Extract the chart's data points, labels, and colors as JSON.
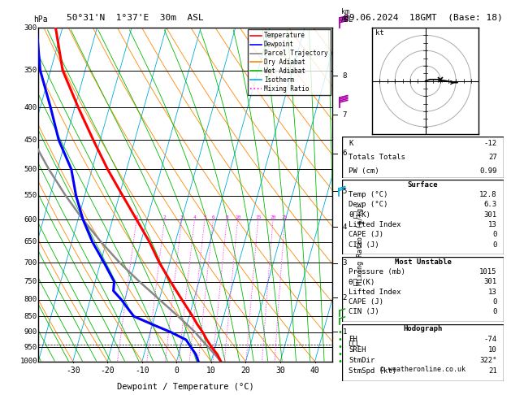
{
  "title_left": "50°31'N  1°37'E  30m  ASL",
  "title_right": "09.06.2024  18GMT  (Base: 18)",
  "xlabel": "Dewpoint / Temperature (°C)",
  "pressure_levels": [
    300,
    350,
    400,
    450,
    500,
    550,
    600,
    650,
    700,
    750,
    800,
    850,
    900,
    950,
    1000
  ],
  "temp_ticks": [
    -30,
    -20,
    -10,
    0,
    10,
    20,
    30,
    40
  ],
  "km_pressure_map": {
    "8": 357,
    "7": 411,
    "6": 472,
    "5": 541,
    "4": 616,
    "3": 701,
    "2": 795,
    "1": 899
  },
  "mixing_ratio_values": [
    1,
    2,
    3,
    4,
    5,
    6,
    8,
    10,
    15,
    20,
    25
  ],
  "legend_items": [
    "Temperature",
    "Dewpoint",
    "Parcel Trajectory",
    "Dry Adiabat",
    "Wet Adiabat",
    "Isotherm",
    "Mixing Ratio"
  ],
  "legend_colors": [
    "#ff0000",
    "#0000ff",
    "#888888",
    "#ff8800",
    "#00bb00",
    "#00aaff",
    "#ff00ff"
  ],
  "legend_styles": [
    "solid",
    "solid",
    "solid",
    "solid",
    "solid",
    "solid",
    "dotted"
  ],
  "temperature_data": {
    "pressure": [
      1000,
      975,
      950,
      925,
      900,
      875,
      850,
      825,
      800,
      775,
      750,
      700,
      650,
      600,
      550,
      500,
      450,
      400,
      350,
      300
    ],
    "temp": [
      12.8,
      11.2,
      9.0,
      7.0,
      5.2,
      3.0,
      1.0,
      -1.2,
      -3.5,
      -5.8,
      -8.2,
      -13.0,
      -17.5,
      -23.0,
      -29.0,
      -35.5,
      -42.0,
      -49.0,
      -56.5,
      -62.0
    ]
  },
  "dewpoint_data": {
    "pressure": [
      1000,
      975,
      950,
      925,
      900,
      875,
      850,
      825,
      800,
      775,
      750,
      700,
      650,
      600,
      550,
      500,
      450,
      400,
      350,
      300
    ],
    "dewp": [
      6.3,
      5.0,
      3.0,
      1.0,
      -4.0,
      -10.0,
      -16.0,
      -18.5,
      -21.0,
      -24.0,
      -24.5,
      -29.0,
      -34.0,
      -38.5,
      -42.5,
      -46.0,
      -52.0,
      -57.0,
      -63.0,
      -67.5
    ]
  },
  "parcel_data": {
    "pressure": [
      1000,
      975,
      950,
      925,
      900,
      875,
      850,
      825,
      800,
      775,
      750,
      700,
      650,
      600,
      550,
      500,
      450,
      400,
      350,
      300
    ],
    "temp": [
      12.8,
      10.5,
      8.0,
      5.5,
      3.0,
      0.0,
      -3.2,
      -6.5,
      -10.0,
      -13.5,
      -17.2,
      -24.5,
      -31.5,
      -38.5,
      -45.5,
      -52.5,
      -59.5,
      -66.5,
      -73.0,
      -79.0
    ]
  },
  "surface_data": {
    "K": -12,
    "TotTot": 27,
    "PW": 0.99,
    "Temp": 12.8,
    "Dewp": 6.3,
    "theta_e": 301,
    "LiftedIndex": 13,
    "CAPE": 0,
    "CIN": 0
  },
  "most_unstable": {
    "Pressure": 1015,
    "theta_e": 301,
    "LiftedIndex": 13,
    "CAPE": 0,
    "CIN": 0
  },
  "hodograph_data": {
    "EH": -74,
    "SREH": 10,
    "StmDir": "322°",
    "StmSpd_kt": 21
  },
  "lcl_pressure": 940,
  "skew_factor": 27.0,
  "wind_barbs": {
    "purple": [
      {
        "pressure": 300,
        "flag": true
      },
      {
        "pressure": 400,
        "flag": true
      }
    ],
    "cyan": [
      {
        "pressure": 550
      }
    ],
    "green": [
      {
        "pressure": 850
      },
      {
        "pressure": 875
      },
      {
        "pressure": 900
      },
      {
        "pressure": 925
      },
      {
        "pressure": 950
      },
      {
        "pressure": 975
      },
      {
        "pressure": 1000
      }
    ]
  },
  "hodo_trace_u": [
    0,
    3,
    8,
    14,
    18,
    21
  ],
  "hodo_trace_v": [
    0,
    1,
    1,
    0,
    -1,
    -1
  ]
}
